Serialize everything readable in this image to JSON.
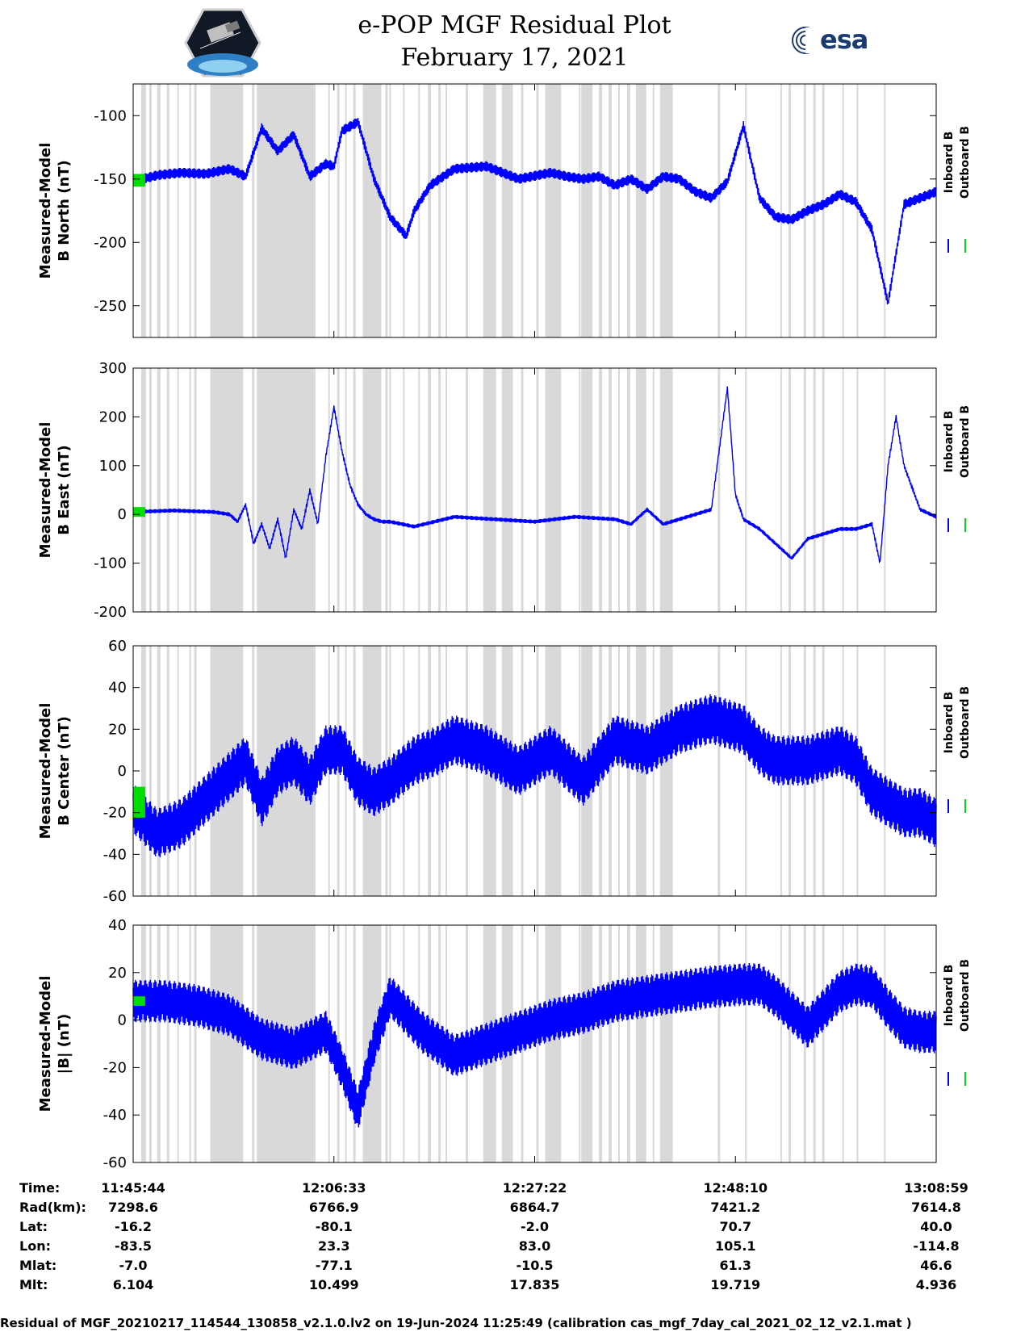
{
  "header": {
    "title_line1": "e-POP MGF Residual Plot",
    "title_line2": "February 17, 2021",
    "logo_left": "cassiope-satellite-logo",
    "logo_right": "esa-logo",
    "logo_right_text": "esa"
  },
  "colors": {
    "inboard": "#0000ff",
    "outboard": "#00dd00",
    "gap_shading": "#d9d9d9"
  },
  "chart_data": [
    {
      "type": "line",
      "ylabel_line1": "Measured-Model",
      "ylabel_line2": "B North (nT)",
      "ylim": [
        -275,
        -75
      ],
      "yticks": [
        "-100",
        "-150",
        "-200",
        "-250"
      ],
      "ytick_values": [
        -100,
        -150,
        -200,
        -250
      ],
      "legend": [
        "Inboard B",
        "Outboard B"
      ],
      "series": [
        {
          "name": "Inboard B",
          "x": [
            0,
            3,
            6,
            9,
            12,
            14,
            16,
            18,
            20,
            22,
            24,
            25,
            26,
            28,
            30,
            32,
            34,
            35,
            37,
            40,
            44,
            48,
            52,
            54,
            56,
            58,
            60,
            62,
            64,
            66,
            68,
            70,
            72,
            74,
            76,
            78,
            80,
            82,
            84,
            86,
            88,
            90,
            92,
            94,
            96,
            98,
            100
          ],
          "y": [
            -152,
            -147,
            -145,
            -146,
            -142,
            -148,
            -110,
            -128,
            -115,
            -148,
            -138,
            -140,
            -112,
            -105,
            -150,
            -180,
            -195,
            -175,
            -155,
            -142,
            -140,
            -150,
            -145,
            -148,
            -150,
            -148,
            -155,
            -150,
            -158,
            -148,
            -150,
            -160,
            -165,
            -152,
            -108,
            -165,
            -180,
            -182,
            -175,
            -170,
            -162,
            -168,
            -190,
            -248,
            -170,
            -165,
            -160
          ],
          "amplitude": 4
        },
        {
          "name": "Outboard B",
          "x": [
            0,
            1.5
          ],
          "y": [
            -152,
            -150
          ]
        }
      ]
    },
    {
      "type": "line",
      "ylabel_line1": "Measured-Model",
      "ylabel_line2": "B East (nT)",
      "ylim": [
        -200,
        300
      ],
      "yticks": [
        "300",
        "200",
        "100",
        "0",
        "-100",
        "-200"
      ],
      "ytick_values": [
        300,
        200,
        100,
        0,
        -100,
        -200
      ],
      "legend": [
        "Inboard B",
        "Outboard B"
      ],
      "series": [
        {
          "name": "Inboard B",
          "x": [
            0,
            5,
            10,
            12,
            13,
            14,
            15,
            16,
            17,
            18,
            19,
            20,
            21,
            22,
            23,
            24,
            25,
            26,
            27,
            28,
            29,
            30,
            31,
            32,
            35,
            40,
            45,
            50,
            55,
            60,
            62,
            64,
            66,
            70,
            72,
            74,
            75,
            76,
            78,
            80,
            82,
            84,
            86,
            88,
            90,
            92,
            93,
            94,
            95,
            96,
            98,
            100
          ],
          "y": [
            5,
            8,
            5,
            0,
            -15,
            20,
            -60,
            -20,
            -70,
            -10,
            -90,
            10,
            -30,
            50,
            -20,
            120,
            220,
            130,
            60,
            20,
            0,
            -10,
            -15,
            -15,
            -25,
            -5,
            -10,
            -15,
            -5,
            -10,
            -20,
            10,
            -20,
            0,
            10,
            260,
            40,
            -10,
            -30,
            -60,
            -90,
            -50,
            -40,
            -30,
            -30,
            -20,
            -100,
            100,
            200,
            100,
            10,
            -5
          ],
          "amplitude": 4
        },
        {
          "name": "Outboard B",
          "x": [
            0,
            1.5
          ],
          "y": [
            5,
            5
          ]
        }
      ]
    },
    {
      "type": "line",
      "ylabel_line1": "Measured-Model",
      "ylabel_line2": "B Center (nT)",
      "ylim": [
        -60,
        60
      ],
      "yticks": [
        "60",
        "40",
        "20",
        "0",
        "-20",
        "-40",
        "-60"
      ],
      "ytick_values": [
        60,
        40,
        20,
        0,
        -20,
        -40,
        -60
      ],
      "legend": [
        "Inboard B",
        "Outboard B"
      ],
      "series": [
        {
          "name": "Inboard B",
          "x": [
            0,
            3,
            6,
            10,
            14,
            16,
            18,
            20,
            22,
            24,
            26,
            28,
            30,
            32,
            35,
            38,
            40,
            44,
            48,
            52,
            56,
            60,
            64,
            68,
            72,
            76,
            78,
            80,
            84,
            88,
            90,
            92,
            94,
            96,
            98,
            100
          ],
          "y": [
            -18,
            -30,
            -25,
            -10,
            5,
            -15,
            0,
            5,
            -5,
            10,
            10,
            -5,
            -10,
            -5,
            5,
            10,
            15,
            10,
            0,
            10,
            -5,
            15,
            10,
            20,
            25,
            20,
            10,
            5,
            5,
            10,
            5,
            -10,
            -15,
            -20,
            -20,
            -25
          ],
          "amplitude": 12
        },
        {
          "name": "Outboard B",
          "x": [
            0,
            1.5
          ],
          "y": [
            -20,
            -10
          ]
        }
      ]
    },
    {
      "type": "line",
      "ylabel_line1": "Measured-Model",
      "ylabel_line2": "|B| (nT)",
      "ylim": [
        -60,
        40
      ],
      "yticks": [
        "40",
        "20",
        "0",
        "-20",
        "-40",
        "-60"
      ],
      "ytick_values": [
        40,
        20,
        0,
        -20,
        -40,
        -60
      ],
      "legend": [
        "Inboard B",
        "Outboard B"
      ],
      "series": [
        {
          "name": "Inboard B",
          "x": [
            0,
            4,
            8,
            12,
            16,
            20,
            24,
            26,
            28,
            30,
            32,
            36,
            40,
            44,
            48,
            52,
            56,
            60,
            64,
            68,
            72,
            76,
            78,
            80,
            84,
            88,
            90,
            92,
            94,
            96,
            98,
            100
          ],
          "y": [
            8,
            8,
            6,
            2,
            -8,
            -12,
            -5,
            -20,
            -38,
            -10,
            10,
            -5,
            -15,
            -10,
            -5,
            0,
            3,
            8,
            10,
            12,
            14,
            15,
            15,
            10,
            -3,
            12,
            15,
            14,
            5,
            -3,
            -5,
            -5
          ],
          "amplitude": 9
        },
        {
          "name": "Outboard B",
          "x": [
            0,
            1.5
          ],
          "y": [
            8,
            8
          ]
        }
      ]
    }
  ],
  "gaps": {
    "note_x_units": "percent of time span",
    "blocks": [
      [
        1,
        1.6
      ],
      [
        2,
        2.3
      ],
      [
        3,
        3.4
      ],
      [
        4.2,
        4.5
      ],
      [
        5.5,
        5.7
      ],
      [
        7,
        7.2
      ],
      [
        7.6,
        7.9
      ],
      [
        9.6,
        13.7
      ],
      [
        14.8,
        15.1
      ],
      [
        15.4,
        22.7
      ],
      [
        24.3,
        24.5
      ],
      [
        25.4,
        25.7
      ],
      [
        26.4,
        26.6
      ],
      [
        27.4,
        27.7
      ],
      [
        28.6,
        30.9
      ],
      [
        31.4,
        31.7
      ],
      [
        31.9,
        32.1
      ],
      [
        33.6,
        33.8
      ],
      [
        35.5,
        35.7
      ],
      [
        36.7,
        37.1
      ],
      [
        38,
        38.3
      ],
      [
        38.9,
        39.1
      ],
      [
        41.4,
        41.7
      ],
      [
        43.6,
        45.2
      ],
      [
        45.9,
        47.3
      ],
      [
        48.3,
        48.6
      ],
      [
        50.2,
        50.5
      ],
      [
        51.3,
        53.3
      ],
      [
        55.5,
        55.7
      ],
      [
        55.8,
        57.2
      ],
      [
        58,
        58.4
      ],
      [
        59.2,
        59.6
      ],
      [
        60.4,
        60.6
      ],
      [
        61.5,
        61.9
      ],
      [
        62.6,
        63.9
      ],
      [
        64.7,
        64.9
      ],
      [
        65.6,
        67.2
      ],
      [
        72.8,
        73.1
      ],
      [
        76.2,
        76.4
      ],
      [
        80.6,
        80.8
      ],
      [
        81.6,
        81.9
      ],
      [
        83.5,
        83.8
      ],
      [
        84.7,
        85
      ],
      [
        85.8,
        86.1
      ],
      [
        88.3,
        88.5
      ],
      [
        90.1,
        90.3
      ],
      [
        93.5,
        93.7
      ]
    ]
  },
  "x_axis": {
    "rows": [
      {
        "label": "Time:",
        "values": [
          "11:45:44",
          "12:06:33",
          "12:27:22",
          "12:48:10",
          "13:08:59"
        ]
      },
      {
        "label": "Rad(km):",
        "values": [
          "7298.6",
          "6766.9",
          "6864.7",
          "7421.2",
          "7614.8"
        ]
      },
      {
        "label": "Lat:",
        "values": [
          "-16.2",
          "-80.1",
          "-2.0",
          "70.7",
          "40.0"
        ]
      },
      {
        "label": "Lon:",
        "values": [
          "-83.5",
          "23.3",
          "83.0",
          "105.1",
          "-114.8"
        ]
      },
      {
        "label": "Mlat:",
        "values": [
          "-7.0",
          "-77.1",
          "-10.5",
          "61.3",
          "46.6"
        ]
      },
      {
        "label": "Mlt:",
        "values": [
          "6.104",
          "10.499",
          "17.835",
          "19.719",
          "4.936"
        ]
      }
    ]
  },
  "footer": "Residual of MGF_20210217_114544_130858_v2.1.0.lv2 on 19-Jun-2024 11:25:49 (calibration cas_mgf_7day_cal_2021_02_12_v2.1.mat )"
}
